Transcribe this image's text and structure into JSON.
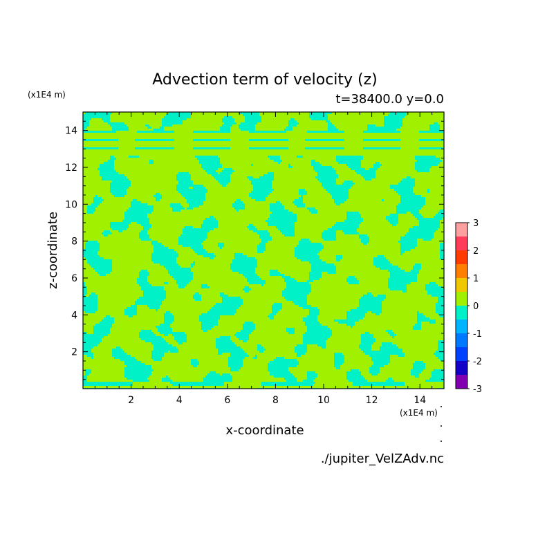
{
  "chart_data": {
    "type": "heatmap",
    "title": "Advection term of velocity (z)",
    "subtitle": "t=38400.0 y=0.0",
    "xlabel": "x-coordinate",
    "ylabel": "z-coordinate",
    "x_unit": "(x1E4 m)",
    "y_unit": "(x1E4 m)",
    "source_label": "./jupiter_VelZAdv.nc",
    "xlim": [
      0,
      15
    ],
    "ylim": [
      0,
      15
    ],
    "x_ticks": [
      "2",
      "4",
      "6",
      "8",
      "10",
      "12",
      "14"
    ],
    "y_ticks": [
      "2",
      "4",
      "6",
      "8",
      "10",
      "12",
      "14"
    ],
    "x_tick_values": [
      2,
      4,
      6,
      8,
      10,
      12,
      14
    ],
    "y_tick_values": [
      2,
      4,
      6,
      8,
      10,
      12,
      14
    ],
    "colorbar": {
      "levels": [
        -3,
        -2.5,
        -2,
        -1.5,
        -1,
        -0.5,
        0,
        0.5,
        1,
        1.5,
        2,
        2.5,
        3
      ],
      "labels": [
        "3",
        "2",
        "1",
        "0",
        "-1",
        "-2",
        "-3"
      ],
      "label_values": [
        3,
        2,
        1,
        0,
        -1,
        -2,
        -3
      ],
      "colors": [
        "#8000b0",
        "#1500c8",
        "#0040ff",
        "#0078ff",
        "#00b4ff",
        "#00f0c8",
        "#a0f000",
        "#f0c800",
        "#ff8000",
        "#ff3c00",
        "#ff3c5a",
        "#ffa0a0"
      ]
    },
    "field_colors": {
      "positive_small": "#a0f000",
      "negative_small": "#00f0c8"
    }
  }
}
